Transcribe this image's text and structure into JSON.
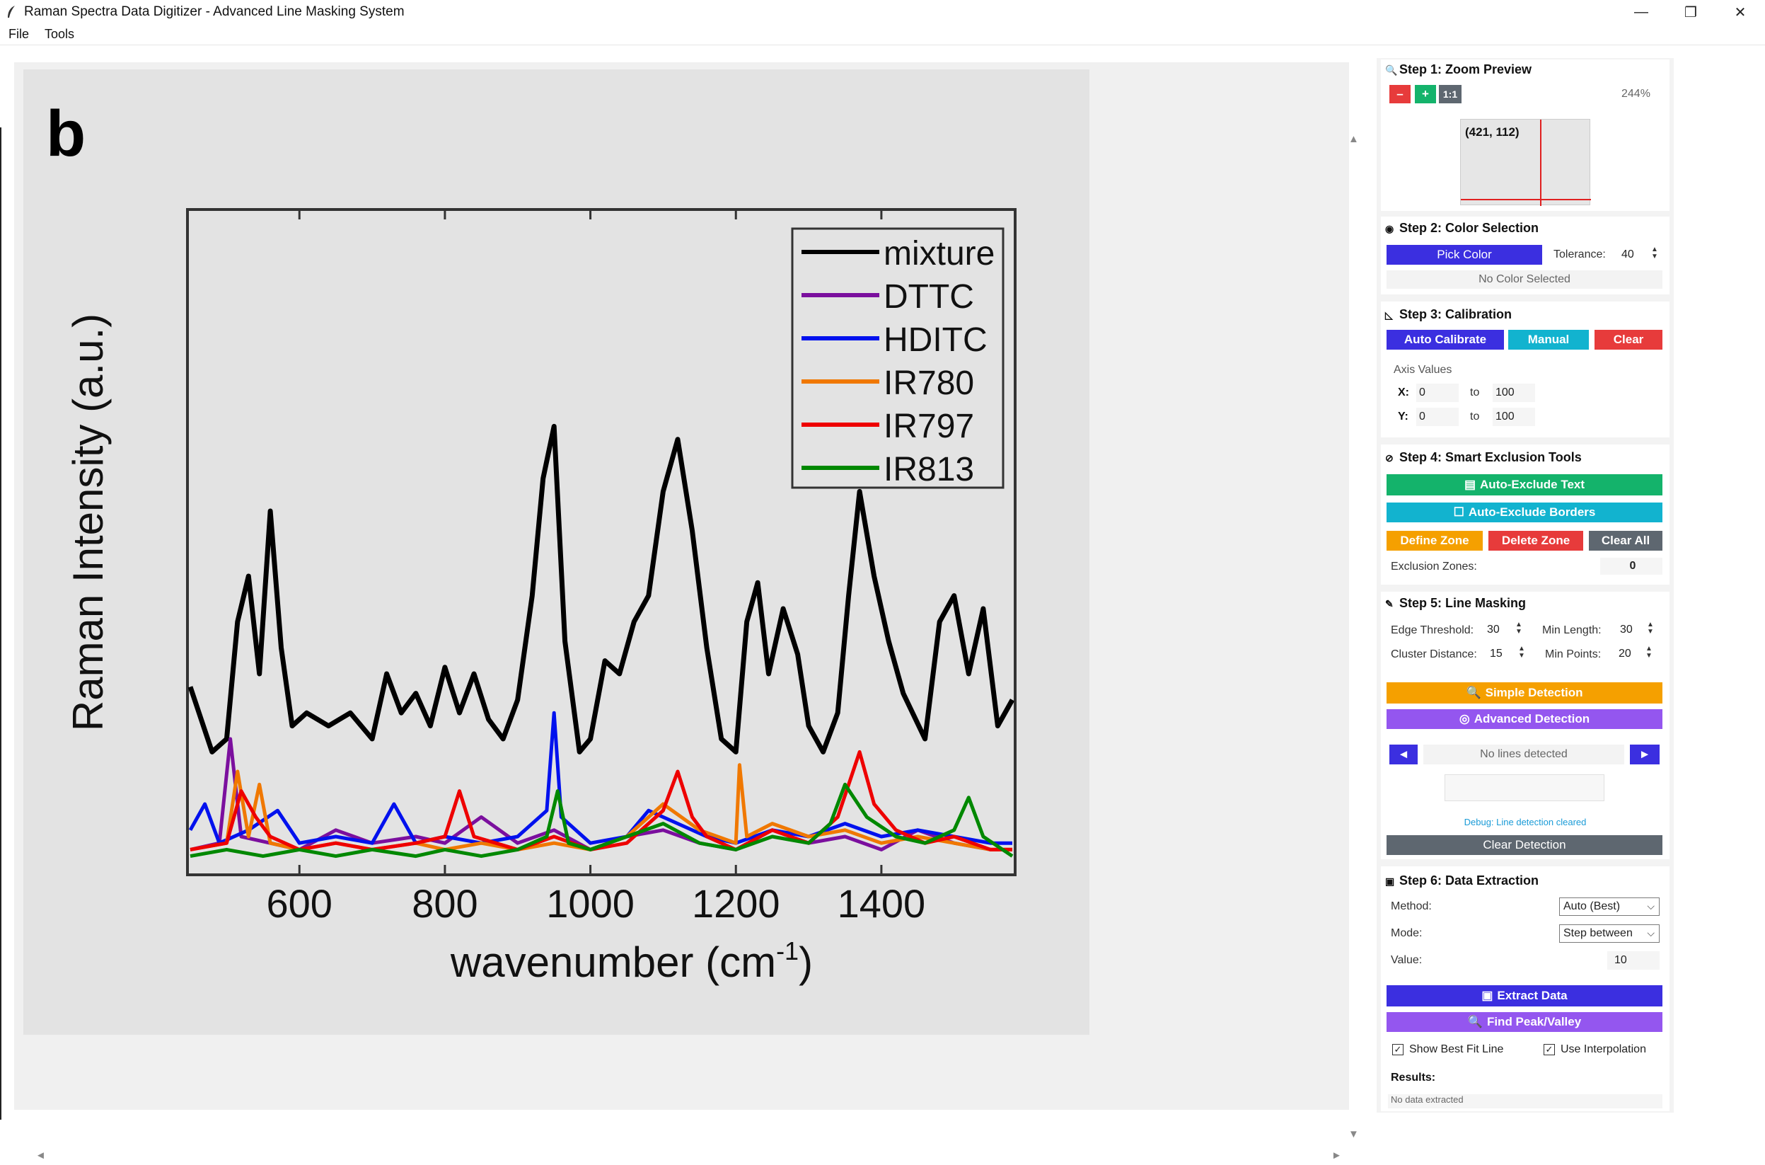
{
  "window": {
    "title": "Raman Spectra Data Digitizer - Advanced Line Masking System",
    "minimize": "—",
    "maximize": "❐",
    "close": "✕"
  },
  "menu": [
    "File",
    "Tools"
  ],
  "figure": {
    "panel_label": "b",
    "ylabel": "Raman Intensity (a.u.)",
    "xlabel": "wavenumber (cm",
    "xlabel_sup": "-1",
    "xlabel_close": ")"
  },
  "chart_data": {
    "type": "line",
    "xlabel": "wavenumber (cm-1)",
    "ylabel": "Raman Intensity (a.u.)",
    "xlim": [
      450,
      1580
    ],
    "ylim": [
      0,
      100
    ],
    "xticks": [
      600,
      800,
      1000,
      1200,
      1400
    ],
    "legend_position": "top-right",
    "series": [
      {
        "name": "mixture",
        "color": "#000000",
        "x": [
          450,
          480,
          500,
          515,
          530,
          545,
          560,
          575,
          590,
          610,
          640,
          670,
          700,
          720,
          740,
          760,
          780,
          800,
          820,
          840,
          860,
          880,
          900,
          920,
          935,
          950,
          965,
          985,
          1000,
          1020,
          1040,
          1060,
          1080,
          1100,
          1120,
          1140,
          1160,
          1180,
          1200,
          1215,
          1230,
          1245,
          1265,
          1285,
          1300,
          1320,
          1340,
          1355,
          1370,
          1390,
          1410,
          1430,
          1460,
          1480,
          1500,
          1520,
          1540,
          1560,
          1580
        ],
        "y": [
          28,
          18,
          20,
          38,
          45,
          30,
          55,
          34,
          22,
          24,
          22,
          24,
          20,
          30,
          24,
          27,
          22,
          31,
          24,
          30,
          23,
          20,
          26,
          42,
          60,
          68,
          35,
          18,
          20,
          32,
          30,
          38,
          42,
          58,
          66,
          52,
          34,
          20,
          18,
          38,
          44,
          30,
          40,
          33,
          22,
          18,
          24,
          42,
          58,
          45,
          35,
          27,
          20,
          38,
          42,
          30,
          40,
          22,
          26
        ]
      },
      {
        "name": "DTTC",
        "color": "#7b0f9e",
        "x": [
          450,
          490,
          505,
          520,
          560,
          600,
          650,
          700,
          760,
          800,
          850,
          900,
          950,
          1000,
          1050,
          1100,
          1150,
          1200,
          1250,
          1300,
          1350,
          1400,
          1450,
          1500,
          1550,
          1580
        ],
        "y": [
          3,
          4,
          20,
          5,
          4,
          3,
          6,
          4,
          5,
          4,
          8,
          4,
          6,
          3,
          5,
          6,
          4,
          3,
          6,
          4,
          5,
          3,
          6,
          4,
          3,
          3
        ]
      },
      {
        "name": "HDITC",
        "color": "#0011ee",
        "x": [
          450,
          470,
          490,
          530,
          570,
          600,
          650,
          700,
          730,
          760,
          800,
          850,
          900,
          940,
          950,
          960,
          1000,
          1050,
          1080,
          1120,
          1160,
          1200,
          1250,
          1300,
          1350,
          1400,
          1450,
          1500,
          1550,
          1580
        ],
        "y": [
          6,
          10,
          4,
          6,
          9,
          4,
          5,
          4,
          10,
          4,
          5,
          4,
          5,
          9,
          24,
          8,
          4,
          5,
          9,
          7,
          5,
          4,
          6,
          5,
          7,
          5,
          6,
          5,
          4,
          4
        ]
      },
      {
        "name": "IR780",
        "color": "#f07800",
        "x": [
          450,
          500,
          515,
          530,
          545,
          560,
          600,
          650,
          700,
          760,
          800,
          850,
          900,
          950,
          1000,
          1050,
          1100,
          1150,
          1200,
          1205,
          1215,
          1250,
          1300,
          1350,
          1400,
          1450,
          1500,
          1550,
          1580
        ],
        "y": [
          3,
          4,
          15,
          5,
          13,
          4,
          3,
          4,
          3,
          4,
          3,
          4,
          3,
          4,
          3,
          5,
          10,
          6,
          4,
          16,
          5,
          7,
          5,
          6,
          4,
          5,
          4,
          3,
          3
        ]
      },
      {
        "name": "IR797",
        "color": "#ee0000",
        "x": [
          450,
          500,
          520,
          540,
          560,
          600,
          650,
          700,
          760,
          800,
          820,
          840,
          870,
          900,
          950,
          1000,
          1050,
          1100,
          1120,
          1140,
          1160,
          1200,
          1250,
          1300,
          1340,
          1370,
          1390,
          1420,
          1460,
          1500,
          1550,
          1580
        ],
        "y": [
          3,
          4,
          12,
          8,
          5,
          3,
          4,
          3,
          4,
          5,
          12,
          5,
          4,
          3,
          5,
          3,
          4,
          9,
          15,
          8,
          5,
          3,
          6,
          4,
          8,
          18,
          10,
          6,
          4,
          5,
          3,
          3
        ]
      },
      {
        "name": "IR813",
        "color": "#008800",
        "x": [
          450,
          500,
          550,
          600,
          650,
          700,
          760,
          800,
          850,
          900,
          940,
          955,
          970,
          1000,
          1050,
          1100,
          1150,
          1200,
          1250,
          1300,
          1330,
          1350,
          1380,
          1420,
          1460,
          1500,
          1520,
          1540,
          1580
        ],
        "y": [
          2,
          3,
          2,
          3,
          2,
          3,
          2,
          3,
          2,
          3,
          5,
          12,
          4,
          3,
          5,
          7,
          4,
          3,
          5,
          4,
          7,
          13,
          8,
          5,
          4,
          6,
          11,
          5,
          2
        ]
      }
    ]
  },
  "step1": {
    "title": "Step 1: Zoom Preview",
    "minus": "–",
    "plus": "+",
    "reset": "1:1",
    "zoom": "244%",
    "coords": "(421, 112)"
  },
  "step2": {
    "title": "Step 2: Color Selection",
    "pick": "Pick Color",
    "tolerance_label": "Tolerance:",
    "tolerance": "40",
    "status": "No Color Selected"
  },
  "step3": {
    "title": "Step 3: Calibration",
    "auto": "Auto Calibrate",
    "manual": "Manual",
    "clear": "Clear",
    "axis_values": "Axis Values",
    "x_label": "X:",
    "x_from": "0",
    "x_to": "100",
    "y_label": "Y:",
    "y_from": "0",
    "y_to": "100",
    "to": "to"
  },
  "step4": {
    "title": "Step 4: Smart Exclusion Tools",
    "auto_text": "Auto-Exclude Text",
    "auto_borders": "Auto-Exclude Borders",
    "define": "Define Zone",
    "delete": "Delete Zone",
    "clear_all": "Clear All",
    "zones_label": "Exclusion Zones:",
    "zones": "0"
  },
  "step5": {
    "title": "Step 5: Line Masking",
    "edge_label": "Edge Threshold:",
    "edge": "30",
    "minlen_label": "Min Length:",
    "minlen": "30",
    "cluster_label": "Cluster Distance:",
    "cluster": "15",
    "minpts_label": "Min Points:",
    "minpts": "20",
    "simple": "Simple Detection",
    "advanced": "Advanced Detection",
    "prev": "◄",
    "next": "►",
    "lines_status": "No lines detected",
    "debug": "Debug: Line detection cleared",
    "clear": "Clear Detection"
  },
  "step6": {
    "title": "Step 6: Data Extraction",
    "method_label": "Method:",
    "method": "Auto (Best)",
    "mode_label": "Mode:",
    "mode": "Step between",
    "value_label": "Value:",
    "value": "10",
    "extract": "Extract Data",
    "peak": "Find Peak/Valley",
    "best_fit": "Show Best Fit Line",
    "interp": "Use Interpolation",
    "results_label": "Results:",
    "results": "No data extracted"
  },
  "colors": {
    "blue": "#3b2fe0",
    "cyan": "#12b3cf",
    "red": "#e73b3b",
    "green": "#14b36b",
    "orange": "#f5a000",
    "purple": "#9456ef",
    "gray": "#5e6770"
  }
}
